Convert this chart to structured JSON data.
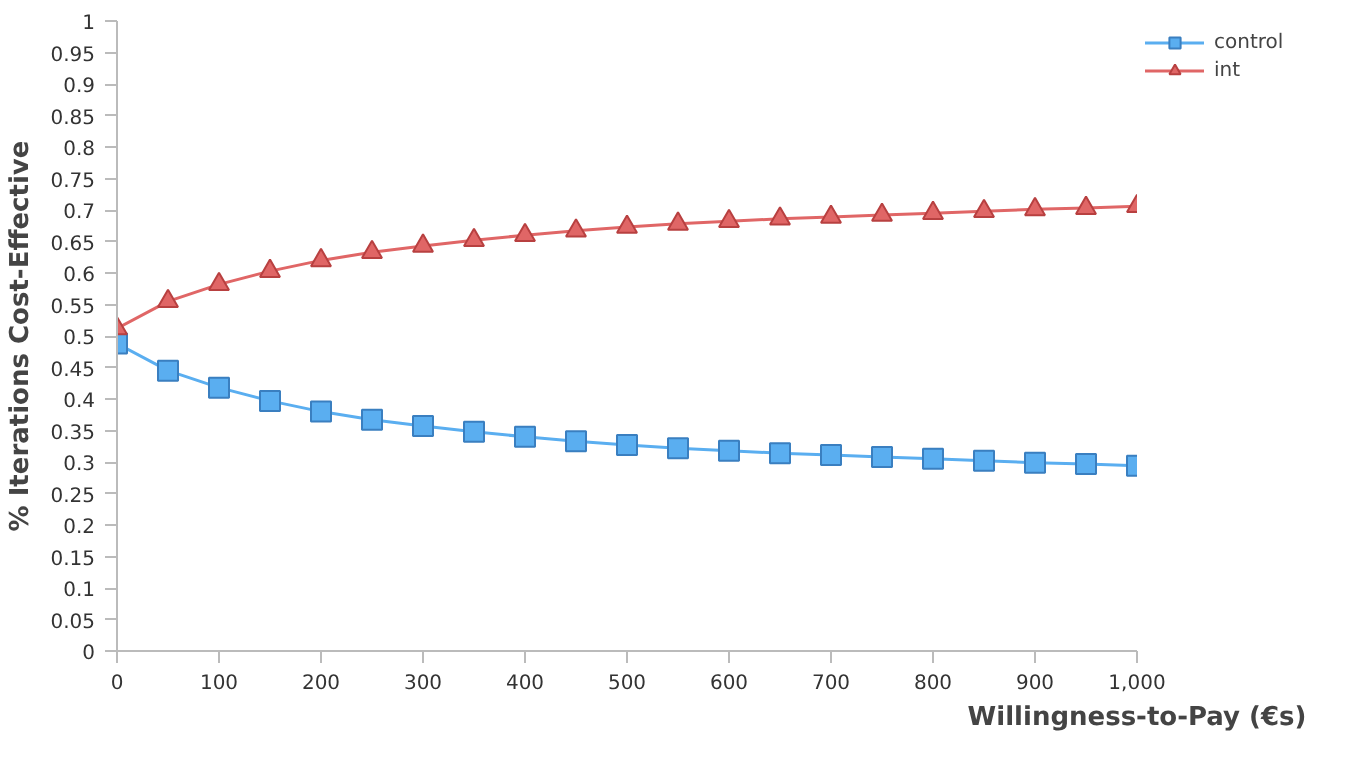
{
  "chart_data": {
    "type": "line",
    "xlabel": "Willingness-to-Pay (€s)",
    "ylabel": "% Iterations Cost-Effective",
    "x": [
      0,
      50,
      100,
      150,
      200,
      250,
      300,
      350,
      400,
      450,
      500,
      550,
      600,
      650,
      700,
      750,
      800,
      850,
      900,
      950,
      1000
    ],
    "series": [
      {
        "name": "control",
        "color": "#5aaef0",
        "marker": "square",
        "values": [
          0.488,
          0.445,
          0.418,
          0.397,
          0.38,
          0.367,
          0.357,
          0.348,
          0.34,
          0.333,
          0.327,
          0.322,
          0.318,
          0.314,
          0.311,
          0.308,
          0.305,
          0.302,
          0.299,
          0.297,
          0.294
        ]
      },
      {
        "name": "int",
        "color": "#e06666",
        "marker": "triangle",
        "values": [
          0.512,
          0.555,
          0.582,
          0.603,
          0.62,
          0.633,
          0.643,
          0.652,
          0.66,
          0.667,
          0.673,
          0.678,
          0.682,
          0.686,
          0.689,
          0.692,
          0.695,
          0.698,
          0.701,
          0.703,
          0.706
        ]
      }
    ],
    "xlim": [
      0,
      1000
    ],
    "xticks": [
      0,
      100,
      200,
      300,
      400,
      500,
      600,
      700,
      800,
      900,
      {
        "value": 1000,
        "label": "1,000"
      }
    ],
    "ylim": [
      0,
      1
    ],
    "yticks": [
      0,
      0.05,
      0.1,
      0.15,
      0.2,
      0.25,
      0.3,
      0.35,
      0.4,
      0.45,
      0.5,
      0.55,
      0.6,
      0.65,
      0.7,
      0.75,
      0.8,
      0.85,
      0.9,
      0.95,
      1
    ],
    "grid": false,
    "legend": "top right",
    "line_style": "solid"
  }
}
